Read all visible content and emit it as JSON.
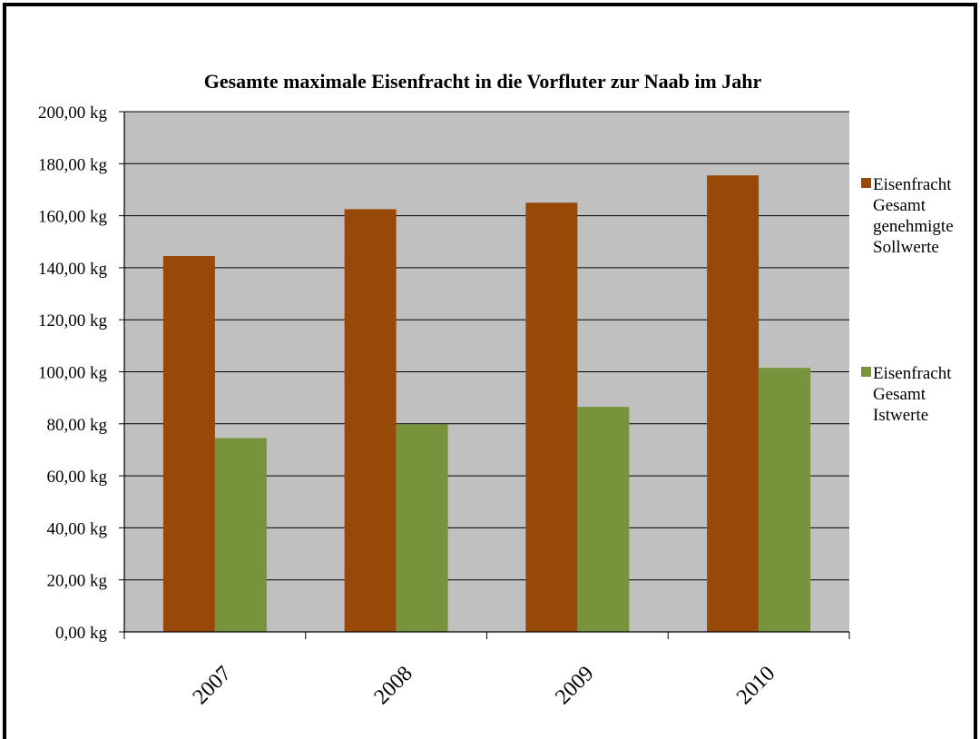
{
  "chart_data": {
    "type": "bar",
    "title": "Gesamte maximale Eisenfracht in  die Vorfluter zur Naab im Jahr",
    "xlabel": "",
    "ylabel": "",
    "categories": [
      "2007",
      "2008",
      "2009",
      "2010"
    ],
    "series": [
      {
        "name": "Eisenfracht Gesamt genehmigte Sollwerte",
        "legend_lines": [
          "Eisenfracht",
          "Gesamt",
          "genehmigte",
          "Sollwerte"
        ],
        "color": "#984807",
        "values": [
          144.5,
          162.5,
          165,
          175.5
        ]
      },
      {
        "name": "Eisenfracht Gesamt Istwerte",
        "legend_lines": [
          "Eisenfracht",
          "Gesamt",
          "Istwerte"
        ],
        "color": "#77933C",
        "values": [
          74.5,
          79.8,
          86.5,
          101.5
        ]
      }
    ],
    "ylim": [
      0,
      200
    ],
    "yticks": [
      0,
      20,
      40,
      60,
      80,
      100,
      120,
      140,
      160,
      180,
      200
    ],
    "ytick_labels": [
      "0,00 kg",
      "20,00 kg",
      "40,00 kg",
      "60,00 kg",
      "80,00 kg",
      "100,00 kg",
      "120,00 kg",
      "140,00 kg",
      "160,00 kg",
      "180,00 kg",
      "200,00 kg"
    ],
    "grid": true,
    "plot_background": "#C0C0C0",
    "legend_position": "right"
  }
}
